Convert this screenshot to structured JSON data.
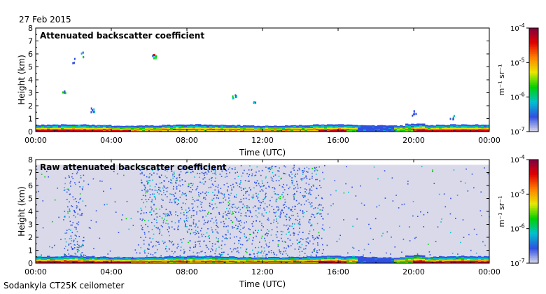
{
  "figure": {
    "date": "27 Feb 2015",
    "instrument": "Sodankyla CT25K ceilometer"
  },
  "colorbar": {
    "tick_labels": [
      "10",
      "10",
      "10",
      "10"
    ],
    "tick_exponents": [
      "-4",
      "-5",
      "-6",
      "-7"
    ],
    "unit_label": "m⁻¹ sr⁻¹",
    "scale": "log",
    "range": [
      1e-07,
      0.0001
    ]
  },
  "colormap": [
    "#d9d9ea",
    "#3050e0",
    "#00c0d0",
    "#00d000",
    "#e8e800",
    "#ff8000",
    "#e00000",
    "#800040"
  ],
  "chart_data": [
    {
      "type": "heatmap",
      "title": "Attenuated backscatter coefficient",
      "xlabel": "Time (UTC)",
      "ylabel": "Height (km)",
      "xlim": [
        "00:00",
        "00:00"
      ],
      "x_ticks": [
        "00:00",
        "04:00",
        "08:00",
        "12:00",
        "16:00",
        "20:00",
        "00:00"
      ],
      "ylim": [
        0,
        8
      ],
      "y_ticks": [
        "0",
        "1",
        "2",
        "3",
        "4",
        "5",
        "6",
        "7",
        "8"
      ],
      "colorscale": "log",
      "z_range": [
        1e-07,
        0.0001
      ],
      "z_unit": "m⁻¹ sr⁻¹",
      "features": {
        "surface_layer_top_km": 0.5,
        "scattered_echoes": [
          {
            "time": "01:30",
            "height_km": 3.0
          },
          {
            "time": "02:00",
            "height_km": 5.5
          },
          {
            "time": "02:30",
            "height_km": 6.0
          },
          {
            "time": "03:00",
            "height_km": 1.7
          },
          {
            "time": "06:15",
            "height_km": 5.9
          },
          {
            "time": "10:30",
            "height_km": 2.7
          },
          {
            "time": "11:30",
            "height_km": 2.3
          },
          {
            "time": "20:00",
            "height_km": 1.5
          },
          {
            "time": "22:00",
            "height_km": 1.2
          }
        ]
      }
    },
    {
      "type": "heatmap",
      "title": "Raw attenuated backscatter coefficient",
      "xlabel": "Time (UTC)",
      "ylabel": "Height (km)",
      "xlim": [
        "00:00",
        "00:00"
      ],
      "x_ticks": [
        "00:00",
        "04:00",
        "08:00",
        "12:00",
        "16:00",
        "20:00",
        "00:00"
      ],
      "ylim": [
        0,
        8
      ],
      "y_ticks": [
        "0",
        "1",
        "2",
        "3",
        "4",
        "5",
        "6",
        "7",
        "8"
      ],
      "colorscale": "log",
      "z_range": [
        1e-07,
        0.0001
      ],
      "z_unit": "m⁻¹ sr⁻¹",
      "features": {
        "surface_layer_top_km": 0.5,
        "noise_top_km": 7.6,
        "dense_noise_periods": [
          [
            "01:30",
            "02:30"
          ],
          [
            "05:30",
            "15:00"
          ]
        ]
      }
    }
  ]
}
